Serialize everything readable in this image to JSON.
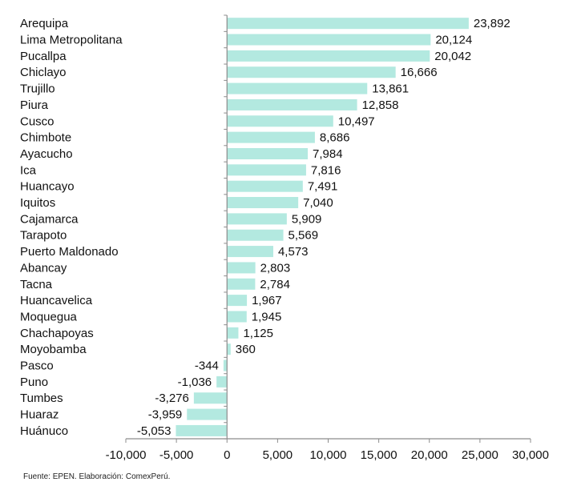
{
  "chart_data": {
    "type": "bar",
    "orientation": "horizontal",
    "title": "",
    "xlabel": "",
    "ylabel": "",
    "xlim": [
      -10000,
      30000
    ],
    "xticks": [
      -10000,
      -5000,
      0,
      5000,
      10000,
      15000,
      20000,
      25000,
      30000
    ],
    "xtick_labels": [
      "-10,000",
      "-5,000",
      "0",
      "5,000",
      "10,000",
      "15,000",
      "20,000",
      "25,000",
      "30,000"
    ],
    "grid": false,
    "legend": "none",
    "bar_color": "#b3e9e0",
    "categories": [
      "Arequipa",
      "Lima Metropolitana",
      "Pucallpa",
      "Chiclayo",
      "Trujillo",
      "Piura",
      "Cusco",
      "Chimbote",
      "Ayacucho",
      "Ica",
      "Huancayo",
      "Iquitos",
      "Cajamarca",
      "Tarapoto",
      "Puerto Maldonado",
      "Abancay",
      "Tacna",
      "Huancavelica",
      "Moquegua",
      "Chachapoyas",
      "Moyobamba",
      "Pasco",
      "Puno",
      "Tumbes",
      "Huaraz",
      "Huánuco"
    ],
    "values": [
      23892,
      20124,
      20042,
      16666,
      13861,
      12858,
      10497,
      8686,
      7984,
      7816,
      7491,
      7040,
      5909,
      5569,
      4573,
      2803,
      2784,
      1967,
      1945,
      1125,
      360,
      -344,
      -1036,
      -3276,
      -3959,
      -5053
    ],
    "value_labels": [
      "23,892",
      "20,124",
      "20,042",
      "16,666",
      "13,861",
      "12,858",
      "10,497",
      "8,686",
      "7,984",
      "7,816",
      "7,491",
      "7,040",
      "5,909",
      "5,569",
      "4,573",
      "2,803",
      "2,784",
      "1,967",
      "1,945",
      "1,125",
      "360",
      "-344",
      "-1,036",
      "-3,276",
      "-3,959",
      "-5,053"
    ]
  },
  "footer": {
    "source": "Fuente: EPEN. Elaboración: ComexPerú."
  }
}
